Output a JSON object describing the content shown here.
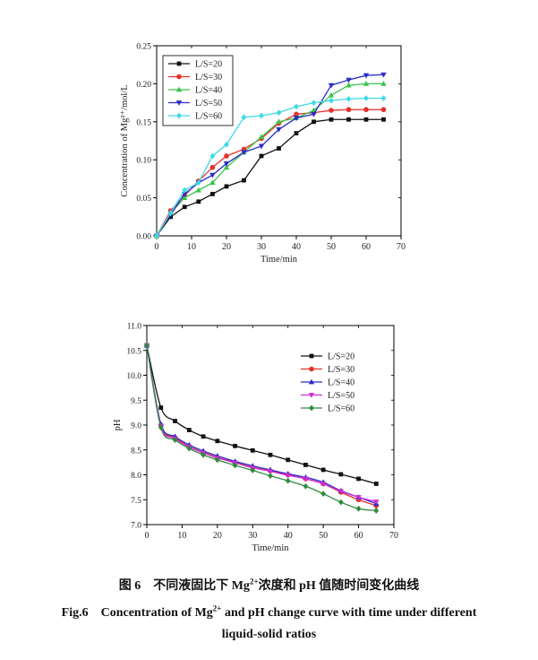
{
  "chart_data": [
    {
      "type": "line",
      "ylabel": "Concentration of Mg²⁺/mol/L",
      "xlabel": "Time/min",
      "xlim": [
        0,
        70
      ],
      "ylim": [
        0.0,
        0.25
      ],
      "xticks": [
        "0",
        "10",
        "20",
        "30",
        "40",
        "50",
        "60",
        "70"
      ],
      "yticks": [
        "0.00",
        "0.05",
        "0.10",
        "0.15",
        "0.20",
        "0.25"
      ],
      "legend_position": "top-left",
      "x": [
        0,
        4,
        8,
        12,
        16,
        20,
        25,
        30,
        35,
        40,
        45,
        50,
        55,
        60,
        65
      ],
      "series": [
        {
          "name": "L/S=20",
          "color": "#111111",
          "marker": "square",
          "values": [
            0.0,
            0.025,
            0.038,
            0.045,
            0.055,
            0.065,
            0.073,
            0.105,
            0.115,
            0.135,
            0.15,
            0.153,
            0.153,
            0.153,
            0.153
          ]
        },
        {
          "name": "L/S=30",
          "color": "#e8302a",
          "marker": "circle",
          "values": [
            0.0,
            0.033,
            0.053,
            0.072,
            0.09,
            0.105,
            0.114,
            0.128,
            0.148,
            0.16,
            0.162,
            0.165,
            0.166,
            0.166,
            0.166
          ]
        },
        {
          "name": "L/S=40",
          "color": "#39c44a",
          "marker": "triangle-up",
          "values": [
            0.0,
            0.03,
            0.05,
            0.06,
            0.07,
            0.09,
            0.11,
            0.13,
            0.15,
            0.155,
            0.165,
            0.185,
            0.198,
            0.2,
            0.2
          ]
        },
        {
          "name": "L/S=50",
          "color": "#2b2bc9",
          "marker": "triangle-down",
          "values": [
            0.0,
            0.028,
            0.055,
            0.07,
            0.08,
            0.095,
            0.11,
            0.118,
            0.14,
            0.155,
            0.16,
            0.198,
            0.205,
            0.211,
            0.212
          ]
        },
        {
          "name": "L/S=60",
          "color": "#3fd9e6",
          "marker": "diamond",
          "values": [
            0.0,
            0.03,
            0.06,
            0.07,
            0.105,
            0.12,
            0.156,
            0.158,
            0.162,
            0.17,
            0.175,
            0.178,
            0.18,
            0.181,
            0.181
          ]
        }
      ]
    },
    {
      "type": "line",
      "ylabel": "pH",
      "xlabel": "Time/min",
      "xlim": [
        0,
        70
      ],
      "ylim": [
        7.0,
        11.0
      ],
      "xticks": [
        "0",
        "10",
        "20",
        "30",
        "40",
        "50",
        "60",
        "70"
      ],
      "yticks": [
        "7.0",
        "7.5",
        "8.0",
        "8.5",
        "9.0",
        "9.5",
        "10.0",
        "10.5",
        "11.0"
      ],
      "legend_position": "top-right",
      "x": [
        0,
        4,
        8,
        12,
        16,
        20,
        25,
        30,
        35,
        40,
        45,
        50,
        55,
        60,
        65
      ],
      "series": [
        {
          "name": "L/S=20",
          "color": "#111111",
          "marker": "square",
          "values": [
            10.6,
            9.35,
            9.08,
            8.9,
            8.77,
            8.68,
            8.58,
            8.49,
            8.4,
            8.3,
            8.2,
            8.1,
            8.01,
            7.92,
            7.82
          ]
        },
        {
          "name": "L/S=30",
          "color": "#e8302a",
          "marker": "circle",
          "values": [
            10.6,
            9.0,
            8.75,
            8.57,
            8.45,
            8.35,
            8.25,
            8.15,
            8.08,
            8.0,
            7.92,
            7.82,
            7.65,
            7.5,
            7.38
          ]
        },
        {
          "name": "L/S=40",
          "color": "#2b2bc9",
          "marker": "triangle-up",
          "values": [
            10.6,
            9.02,
            8.77,
            8.6,
            8.48,
            8.38,
            8.27,
            8.18,
            8.1,
            8.02,
            7.95,
            7.85,
            7.68,
            7.55,
            7.42
          ]
        },
        {
          "name": "L/S=50",
          "color": "#cf2bd8",
          "marker": "triangle-down",
          "values": [
            10.6,
            8.98,
            8.73,
            8.56,
            8.44,
            8.34,
            8.24,
            8.14,
            8.07,
            7.99,
            7.92,
            7.82,
            7.67,
            7.55,
            7.46
          ]
        },
        {
          "name": "L/S=60",
          "color": "#2e8b3e",
          "marker": "diamond",
          "values": [
            10.6,
            8.95,
            8.7,
            8.53,
            8.4,
            8.3,
            8.19,
            8.09,
            7.98,
            7.88,
            7.77,
            7.62,
            7.45,
            7.32,
            7.28
          ]
        }
      ]
    }
  ],
  "caption": {
    "cn_prefix": "图 6　不同液固比下 Mg",
    "cn_sup": "2+",
    "cn_suffix": "浓度和 pH 值随时间变化曲线",
    "en_prefix": "Fig.6　Concentration of Mg",
    "en_sup": "2+",
    "en_suffix": " and pH change curve with time under different",
    "en_line2": "liquid-solid ratios"
  }
}
